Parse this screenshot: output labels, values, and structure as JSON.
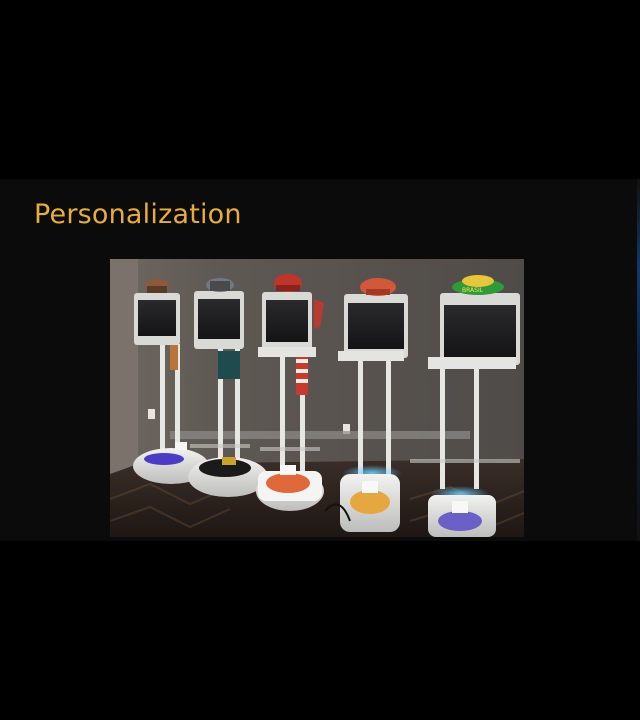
{
  "slide": {
    "title": "Personalization"
  },
  "photo": {
    "subject": "five telepresence robots wearing hats",
    "robots": [
      {
        "hat_color": "#8a5a3a",
        "base_stripe_color": "#4b3cc4"
      },
      {
        "hat_color": "#6b7a86",
        "base_stripe_color": "#1a1a1a"
      },
      {
        "hat_color": "#c0352a",
        "base_stripe_color": "#e0683a"
      },
      {
        "hat_color": "#d2583a",
        "base_stripe_color": "#e6a640"
      },
      {
        "hat_color": "#2f9a3a",
        "base_stripe_color": "#6b5fc8"
      }
    ],
    "hat_text": "BRASIL"
  },
  "colors": {
    "title": "#e7ad3a",
    "slide_bg": "#0b0b0b",
    "page_bg": "#000000"
  }
}
